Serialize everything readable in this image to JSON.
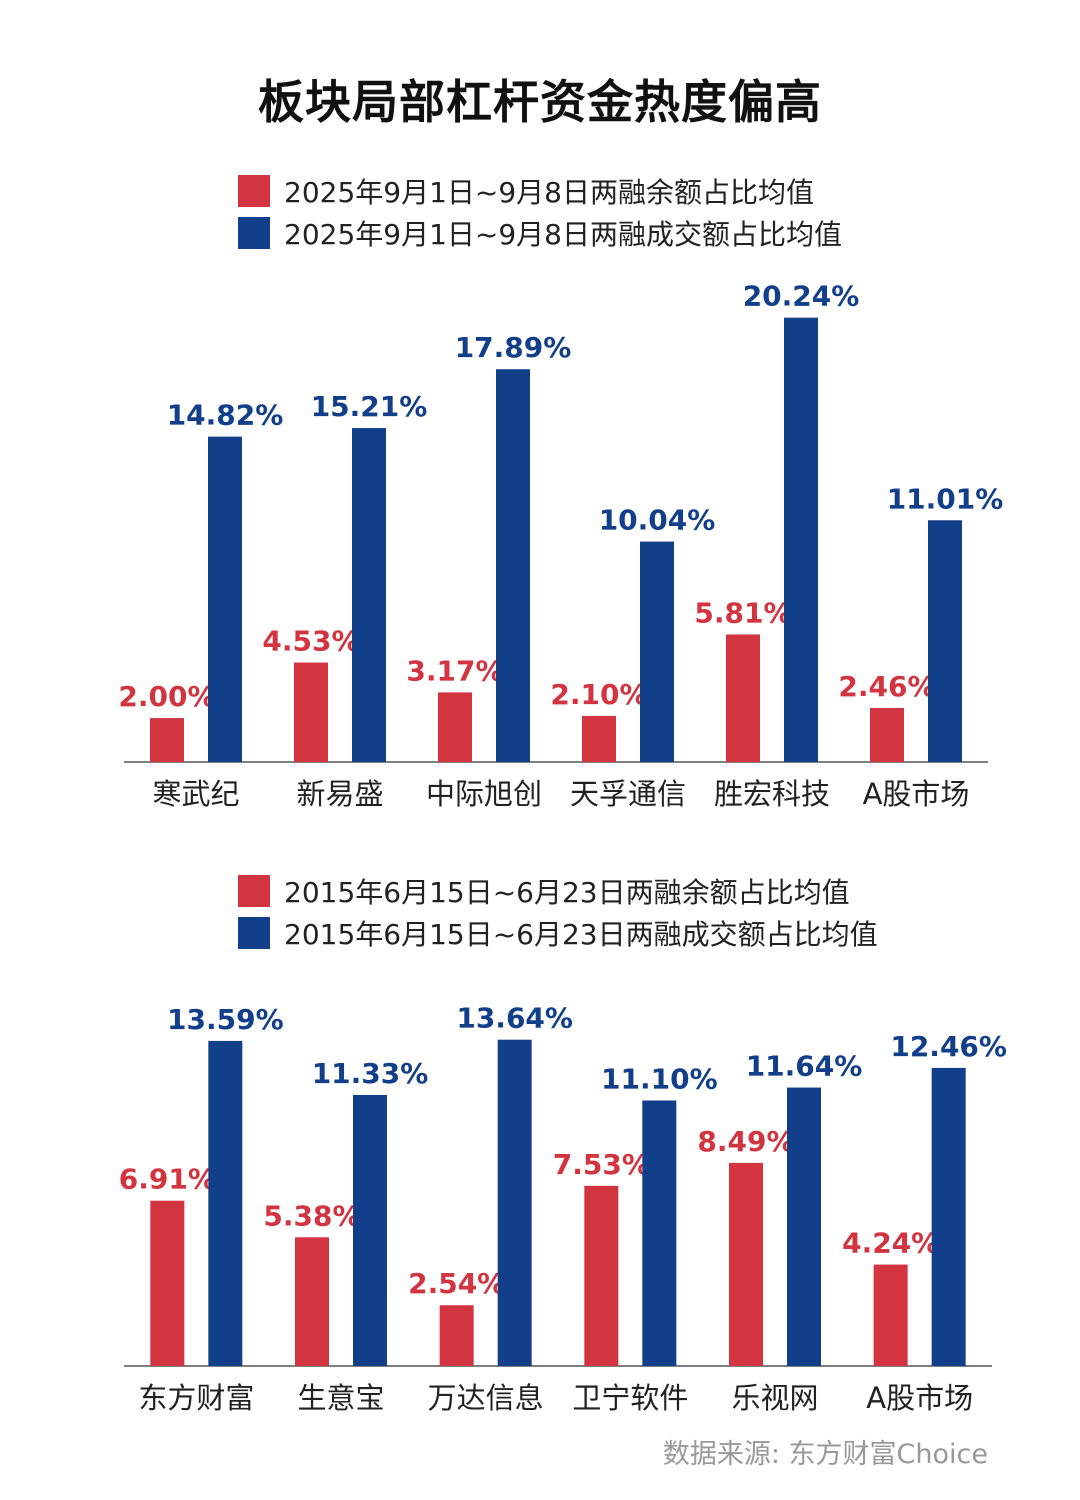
{
  "title": "板块局部杠杆资金热度偏高",
  "colors": {
    "red": "#d23440",
    "blue": "#123f8a"
  },
  "chart_data": [
    {
      "type": "bar",
      "categories": [
        "寒武纪",
        "新易盛",
        "中际旭创",
        "天孚通信",
        "胜宏科技",
        "A股市场"
      ],
      "series": [
        {
          "name": "2025年9月1日~9月8日两融余额占比均值",
          "values": [
            2.0,
            4.53,
            3.17,
            2.1,
            5.81,
            2.46
          ],
          "labels": [
            "2.00%",
            "4.53%",
            "3.17%",
            "2.10%",
            "5.81%",
            "2.46%"
          ]
        },
        {
          "name": "2025年9月1日~9月8日两融成交额占比均值",
          "values": [
            14.82,
            15.21,
            17.89,
            10.04,
            20.24,
            11.01
          ],
          "labels": [
            "14.82%",
            "15.21%",
            "17.89%",
            "10.04%",
            "20.24%",
            "11.01%"
          ]
        }
      ],
      "ylim": [
        0,
        22
      ]
    },
    {
      "type": "bar",
      "categories": [
        "东方财富",
        "生意宝",
        "万达信息",
        "卫宁软件",
        "乐视网",
        "A股市场"
      ],
      "series": [
        {
          "name": "2015年6月15日~6月23日两融余额占比均值",
          "values": [
            6.91,
            5.38,
            2.54,
            7.53,
            8.49,
            4.24
          ],
          "labels": [
            "6.91%",
            "5.38%",
            "2.54%",
            "7.53%",
            "8.49%",
            "4.24%"
          ]
        },
        {
          "name": "2015年6月15日~6月23日两融成交额占比均值",
          "values": [
            13.59,
            11.33,
            13.64,
            11.1,
            11.64,
            12.46
          ],
          "labels": [
            "13.59%",
            "11.33%",
            "13.64%",
            "11.10%",
            "11.64%",
            "12.46%"
          ]
        }
      ],
      "ylim": [
        0,
        15.3
      ]
    }
  ],
  "source": "数据来源: 东方财富Choice"
}
